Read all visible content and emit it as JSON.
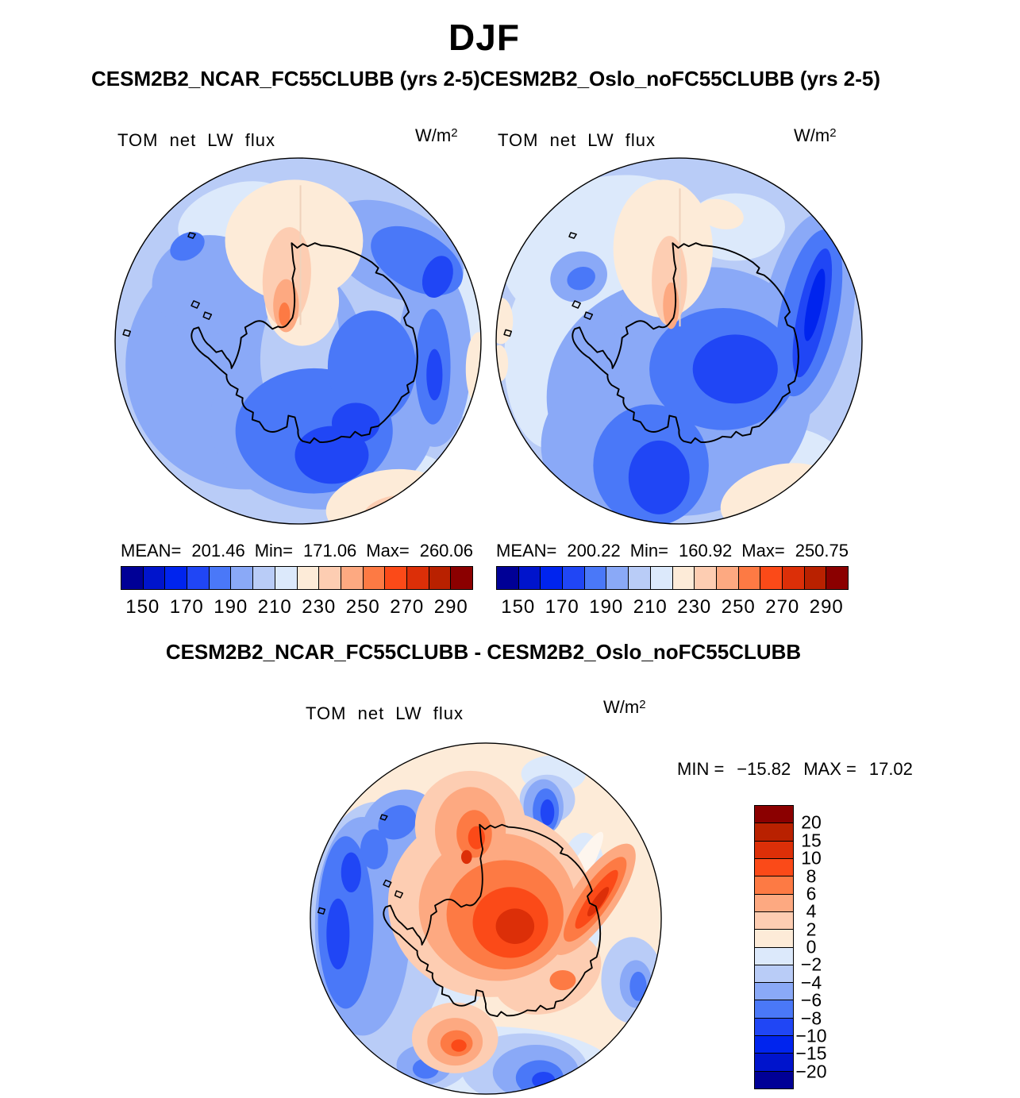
{
  "title": "DJF",
  "subtitle": "CESM2B2_NCAR_FC55CLUBB (yrs 2-5)CESM2B2_Oslo_noFC55CLUBB (yrs 2-5)",
  "panels": [
    {
      "field_label": "TOM net LW flux",
      "units_base": "W/m",
      "units_exp": "2",
      "stats": {
        "mean_label": "MEAN=",
        "mean": "201.46",
        "min_label": "Min=",
        "min": "171.06",
        "max_label": "Max=",
        "max": "260.06"
      },
      "colorbar_ticks": [
        "150",
        "170",
        "190",
        "210",
        "230",
        "250",
        "270",
        "290"
      ]
    },
    {
      "field_label": "TOM net LW flux",
      "units_base": "W/m",
      "units_exp": "2",
      "stats": {
        "mean_label": "MEAN=",
        "mean": "200.22",
        "min_label": "Min=",
        "min": "160.92",
        "max_label": "Max=",
        "max": "250.75"
      },
      "colorbar_ticks": [
        "150",
        "170",
        "190",
        "210",
        "230",
        "250",
        "270",
        "290"
      ]
    }
  ],
  "diff_panel": {
    "title": "CESM2B2_NCAR_FC55CLUBB - CESM2B2_Oslo_noFC55CLUBB",
    "field_label": "TOM net LW flux",
    "units_base": "W/m",
    "units_exp": "2",
    "min_label": "MIN =",
    "min": "−15.82",
    "max_label": "MAX =",
    "max": "17.02",
    "colorbar_labels": [
      "20",
      "15",
      "10",
      "8",
      "6",
      "4",
      "2",
      "0",
      "−2",
      "−4",
      "−6",
      "−8",
      "−10",
      "−15",
      "−20"
    ]
  },
  "palette": [
    "#000096",
    "#0014CC",
    "#0024EE",
    "#2046F5",
    "#4A78F8",
    "#8AA9F7",
    "#B9CCF7",
    "#DCE9FB",
    "#FDEBD8",
    "#FDCDB2",
    "#FDA981",
    "#FD7A44",
    "#FB4A18",
    "#DC2F08",
    "#B92100",
    "#8B0000"
  ],
  "chart_data": [
    {
      "type": "heatmap",
      "subtype": "filled-contour-map",
      "projection": "south-polar-stereographic",
      "region": "Antarctica",
      "season": "DJF",
      "panel_title": "CESM2B2_NCAR_FC55CLUBB (yrs 2-5)",
      "title": "TOM net LW flux",
      "units": "W/m²",
      "stats": {
        "mean": 201.46,
        "min": 171.06,
        "max": 260.06
      },
      "contour_levels": [
        150,
        160,
        170,
        180,
        190,
        200,
        210,
        220,
        230,
        240,
        250,
        260,
        270,
        280,
        290
      ],
      "colorbar_ticks": [
        150,
        170,
        190,
        210,
        230,
        250,
        270,
        290
      ],
      "legend_position": "bottom",
      "palette_direction": "blue-low-red-high"
    },
    {
      "type": "heatmap",
      "subtype": "filled-contour-map",
      "projection": "south-polar-stereographic",
      "region": "Antarctica",
      "season": "DJF",
      "panel_title": "CESM2B2_Oslo_noFC55CLUBB (yrs 2-5)",
      "title": "TOM net LW flux",
      "units": "W/m²",
      "stats": {
        "mean": 200.22,
        "min": 160.92,
        "max": 250.75
      },
      "contour_levels": [
        150,
        160,
        170,
        180,
        190,
        200,
        210,
        220,
        230,
        240,
        250,
        260,
        270,
        280,
        290
      ],
      "colorbar_ticks": [
        150,
        170,
        190,
        210,
        230,
        250,
        270,
        290
      ],
      "legend_position": "bottom",
      "palette_direction": "blue-low-red-high"
    },
    {
      "type": "heatmap",
      "subtype": "filled-contour-difference-map",
      "projection": "south-polar-stereographic",
      "region": "Antarctica",
      "season": "DJF",
      "panel_title": "CESM2B2_NCAR_FC55CLUBB - CESM2B2_Oslo_noFC55CLUBB",
      "title": "TOM net LW flux",
      "units": "W/m²",
      "stats": {
        "min": -15.82,
        "max": 17.02
      },
      "contour_levels": [
        -20,
        -15,
        -10,
        -8,
        -6,
        -4,
        -2,
        0,
        2,
        4,
        6,
        8,
        10,
        15,
        20
      ],
      "legend_position": "right",
      "palette_direction": "blue-negative-red-positive"
    }
  ]
}
